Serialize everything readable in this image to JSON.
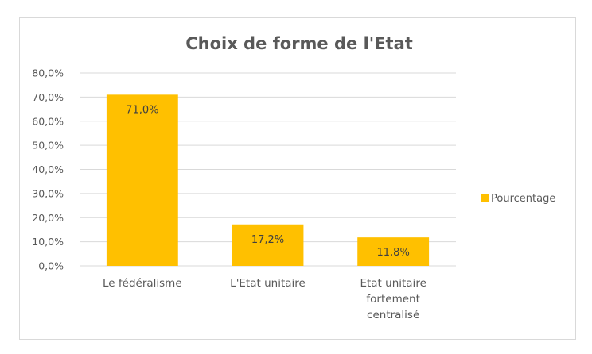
{
  "chart_data": {
    "type": "bar",
    "title": "Choix de forme de l'Etat",
    "categories": [
      "Le fédéralisme",
      "L'Etat unitaire",
      "Etat unitaire fortement centralisé"
    ],
    "category_lines": [
      [
        "Le fédéralisme"
      ],
      [
        "L'Etat unitaire"
      ],
      [
        "Etat unitaire",
        "fortement",
        "centralisé"
      ]
    ],
    "series": [
      {
        "name": "Pourcentage",
        "values": [
          71.0,
          17.2,
          11.8
        ],
        "labels": [
          "71,0%",
          "17,2%",
          "11,8%"
        ]
      }
    ],
    "ylim": [
      0,
      80
    ],
    "yticks": [
      0,
      10,
      20,
      30,
      40,
      50,
      60,
      70,
      80
    ],
    "ytick_labels": [
      "0,0%",
      "10,0%",
      "20,0%",
      "30,0%",
      "40,0%",
      "50,0%",
      "60,0%",
      "70,0%",
      "80,0%"
    ],
    "grid": true,
    "legend_position": "right",
    "bar_color": "#FFC000"
  }
}
